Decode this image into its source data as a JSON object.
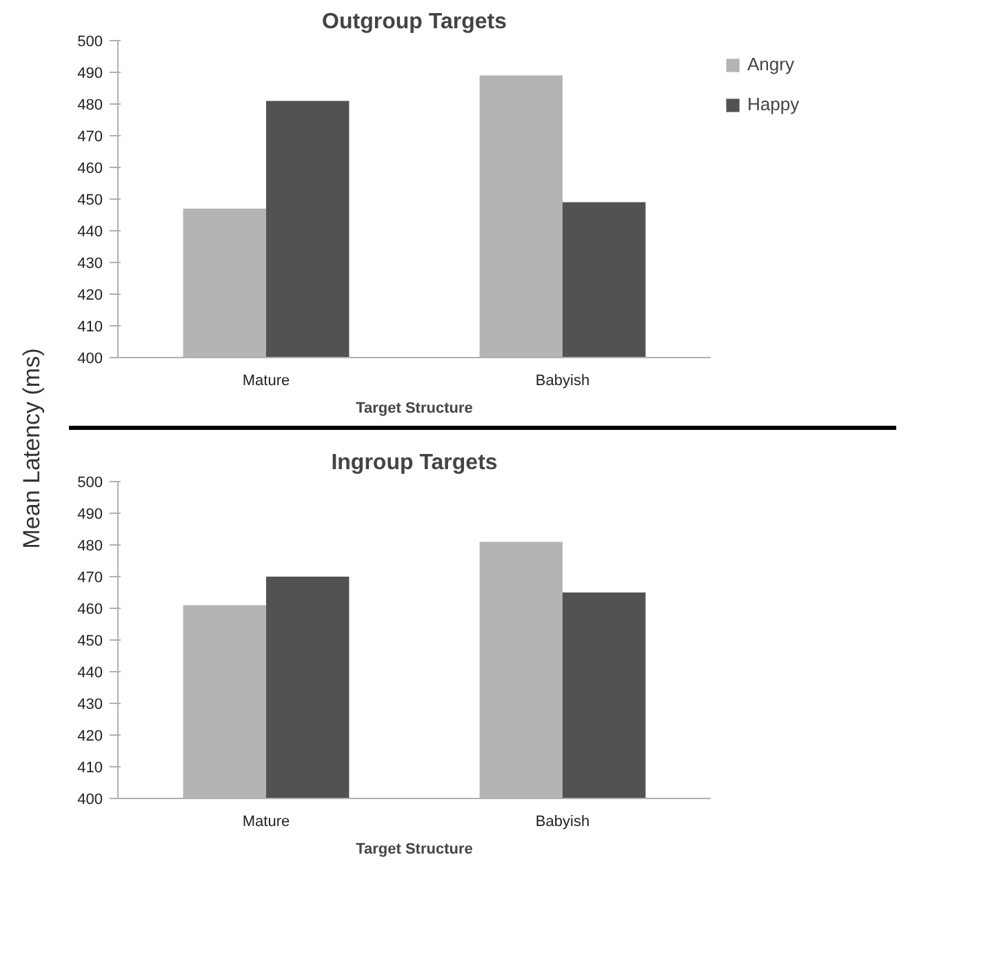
{
  "chart_data": [
    {
      "type": "bar",
      "title": "Outgroup Targets",
      "xlabel": "Target Structure",
      "ylabel": "Mean Latency (ms)",
      "categories": [
        "Mature",
        "Babyish"
      ],
      "series": [
        {
          "name": "Angry",
          "color": "#b4b4b4",
          "values": [
            447,
            489
          ]
        },
        {
          "name": "Happy",
          "color": "#525252",
          "values": [
            481,
            449
          ]
        }
      ],
      "ylim": [
        400,
        500
      ],
      "yticks": [
        400,
        410,
        420,
        430,
        440,
        450,
        460,
        470,
        480,
        490,
        500
      ],
      "grid": false,
      "legend": "top right"
    },
    {
      "type": "bar",
      "title": "Ingroup Targets",
      "xlabel": "Target Structure",
      "categories": [
        "Mature",
        "Babyish"
      ],
      "series": [
        {
          "color": "#b4b4b4",
          "values": [
            461,
            481
          ]
        },
        {
          "color": "#525252",
          "values": [
            470,
            465
          ]
        }
      ],
      "ylim": [
        400,
        500
      ],
      "yticks": [
        400,
        410,
        420,
        430,
        440,
        450,
        460,
        470,
        480,
        490,
        500
      ],
      "grid": false
    }
  ]
}
